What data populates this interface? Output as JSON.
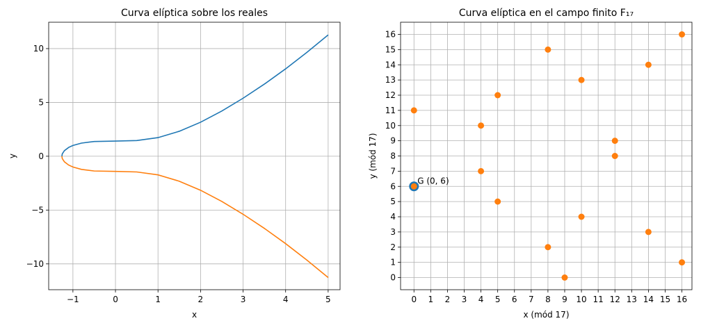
{
  "chart_data": [
    {
      "type": "line",
      "title": "Curva elíptica sobre los reales",
      "x_label": "x",
      "y_label": "y",
      "x": [
        -1.26,
        -1.25,
        -1.2,
        -1.1,
        -1.0,
        -0.8,
        -0.5,
        0,
        0.5,
        1,
        1.5,
        2,
        2.5,
        3,
        3.5,
        4,
        4.5,
        5
      ],
      "series": [
        {
          "color": "#1f77b4",
          "values": [
            0,
            0.22,
            0.52,
            0.82,
            1,
            1.22,
            1.37,
            1.41,
            1.46,
            1.73,
            2.32,
            3.16,
            4.2,
            5.39,
            6.7,
            8.12,
            9.65,
            11.27
          ]
        },
        {
          "color": "#ff7f0e",
          "values": [
            0,
            -0.22,
            -0.52,
            -0.82,
            -1,
            -1.22,
            -1.37,
            -1.41,
            -1.46,
            -1.73,
            -2.32,
            -3.16,
            -4.2,
            -5.39,
            -6.7,
            -8.12,
            -9.65,
            -11.27
          ]
        }
      ],
      "xlim": [
        -1.57,
        5.28
      ],
      "ylim": [
        -12.4,
        12.45
      ],
      "xticks": [
        {
          "value": -1,
          "label": "−1"
        },
        0,
        1,
        2,
        3,
        4,
        5
      ],
      "yticks": [
        {
          "value": -10,
          "label": "−10"
        },
        {
          "value": -5,
          "label": "−5"
        },
        0,
        5,
        10
      ],
      "grid": true
    },
    {
      "type": "scatter",
      "title": "Curva elíptica en el campo finito F₁₇",
      "x_label": "x (mód 17)",
      "y_label": "y (mód 17)",
      "series": [
        {
          "color": "#1f77b4",
          "size": 7,
          "x": [
            0
          ],
          "values": [
            6
          ],
          "annotation": "G (0, 6)"
        },
        {
          "color": "#ff7f0e",
          "size": 4.5,
          "x": [
            0,
            0,
            4,
            4,
            5,
            5,
            8,
            8,
            9,
            10,
            10,
            12,
            12,
            14,
            14,
            16,
            16
          ],
          "values": [
            11,
            6,
            10,
            7,
            12,
            5,
            15,
            2,
            0,
            13,
            4,
            9,
            8,
            14,
            3,
            16,
            1
          ]
        }
      ],
      "xlim": [
        -0.8,
        16.6
      ],
      "ylim": [
        -0.8,
        16.8
      ],
      "xticks": [
        0,
        1,
        2,
        3,
        4,
        5,
        6,
        7,
        8,
        9,
        10,
        11,
        12,
        13,
        14,
        15,
        16
      ],
      "yticks": [
        0,
        1,
        2,
        3,
        4,
        5,
        6,
        7,
        8,
        9,
        10,
        11,
        12,
        13,
        14,
        15,
        16
      ],
      "grid": true
    }
  ]
}
